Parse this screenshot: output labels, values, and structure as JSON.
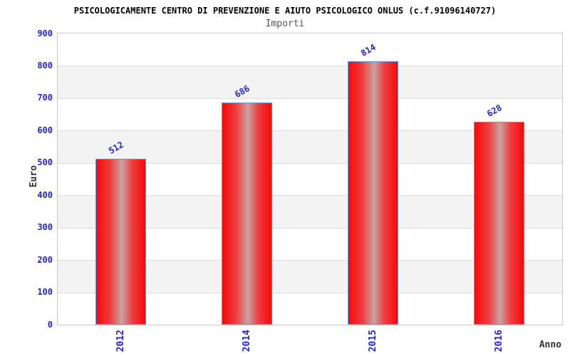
{
  "title": "PSICOLOGICAMENTE CENTRO DI PREVENZIONE E AIUTO PSICOLOGICO ONLUS (c.f.91096140727)",
  "subtitle": "Importi",
  "chart_data": {
    "type": "bar",
    "title": "PSICOLOGICAMENTE CENTRO DI PREVENZIONE E AIUTO PSICOLOGICO ONLUS (c.f.91096140727)",
    "subtitle": "Importi",
    "categories": [
      "2012",
      "2014",
      "2015",
      "2016"
    ],
    "values": [
      512,
      686,
      814,
      628
    ],
    "xlabel": "Anno",
    "ylabel": "Euro",
    "ylim": [
      0,
      900
    ],
    "yticks": [
      0,
      100,
      200,
      300,
      400,
      500,
      600,
      700,
      800,
      900
    ],
    "grid": "horizontal-bands-alternating",
    "legend": false,
    "colors": {
      "bar_red": "#f60a0a",
      "bar_highlight": "#c9a2a2",
      "bar_border": "#5e9ae0",
      "label_blue": "#2424d6",
      "band_gray": "#f3f3f3",
      "gridline": "#dcdcdc",
      "plot_border": "#c9c9c9",
      "title_color": "#000000",
      "subtitle_color": "#555555",
      "axis_label_color": "#333333"
    }
  }
}
